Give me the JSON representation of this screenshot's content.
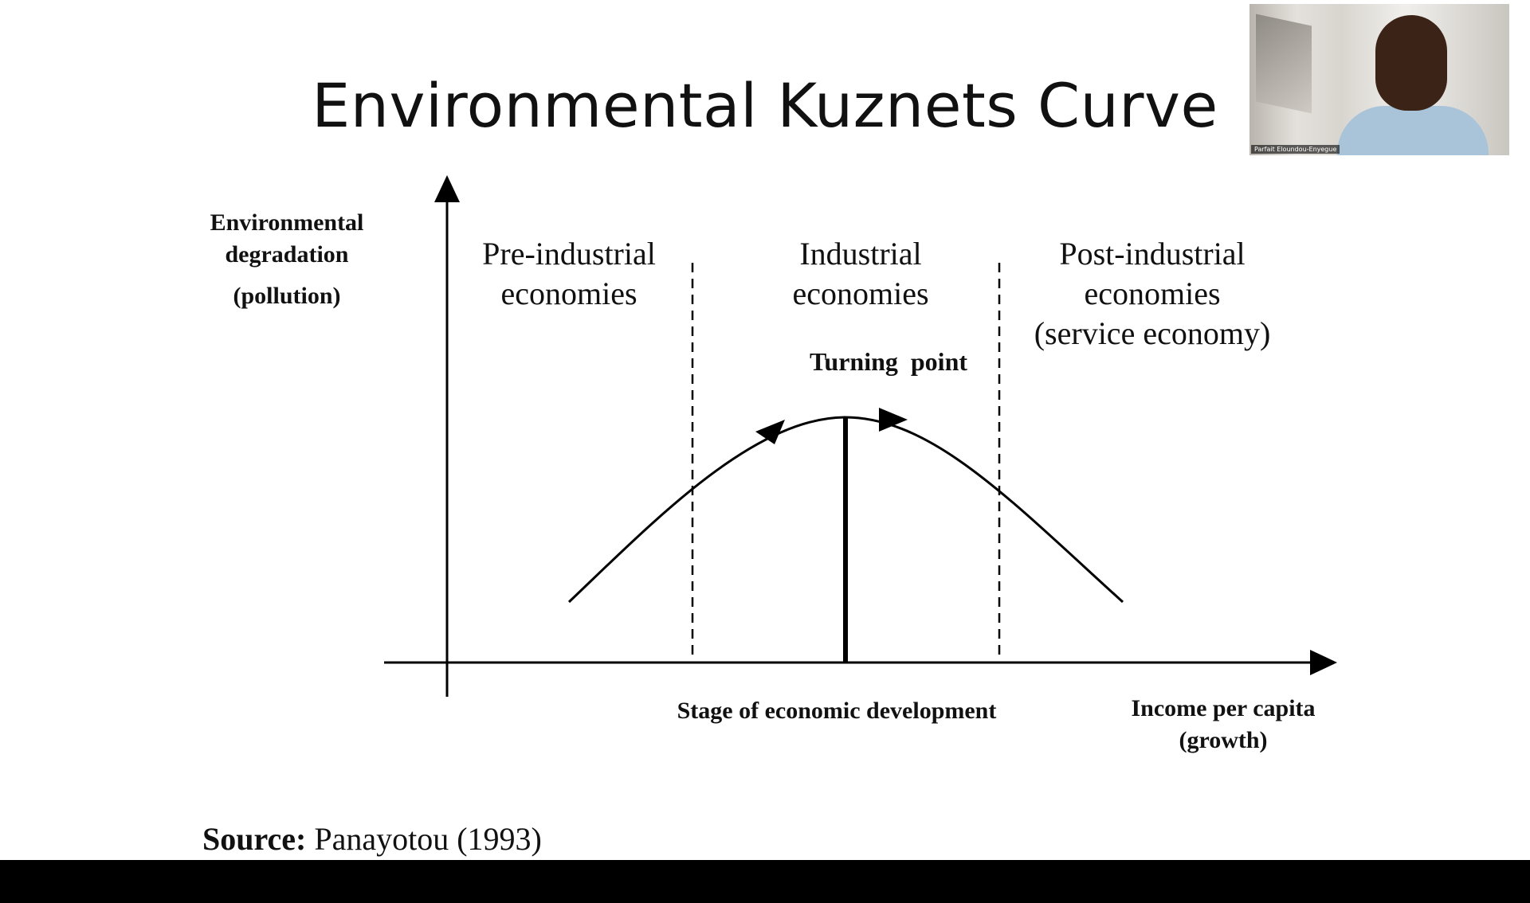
{
  "slide": {
    "title": "Environmental Kuznets Curve",
    "y_axis_label": [
      "Environmental",
      "degradation",
      "(pollution)"
    ],
    "regions": [
      {
        "lines": [
          "Pre-industrial",
          "economies"
        ]
      },
      {
        "lines": [
          "Industrial",
          "economies"
        ]
      },
      {
        "lines": [
          "Post-industrial",
          "economies",
          "(service economy)"
        ]
      }
    ],
    "turning_point_label": "Turning  point",
    "stage_label": "Stage of economic development",
    "x_axis_label": [
      "Income per capita",
      "(growth)"
    ],
    "source_label": "Source:",
    "source_text": "Panayotou (1993)"
  },
  "webcam": {
    "participant_name": "Parfait Eloundou-Enyegue"
  }
}
